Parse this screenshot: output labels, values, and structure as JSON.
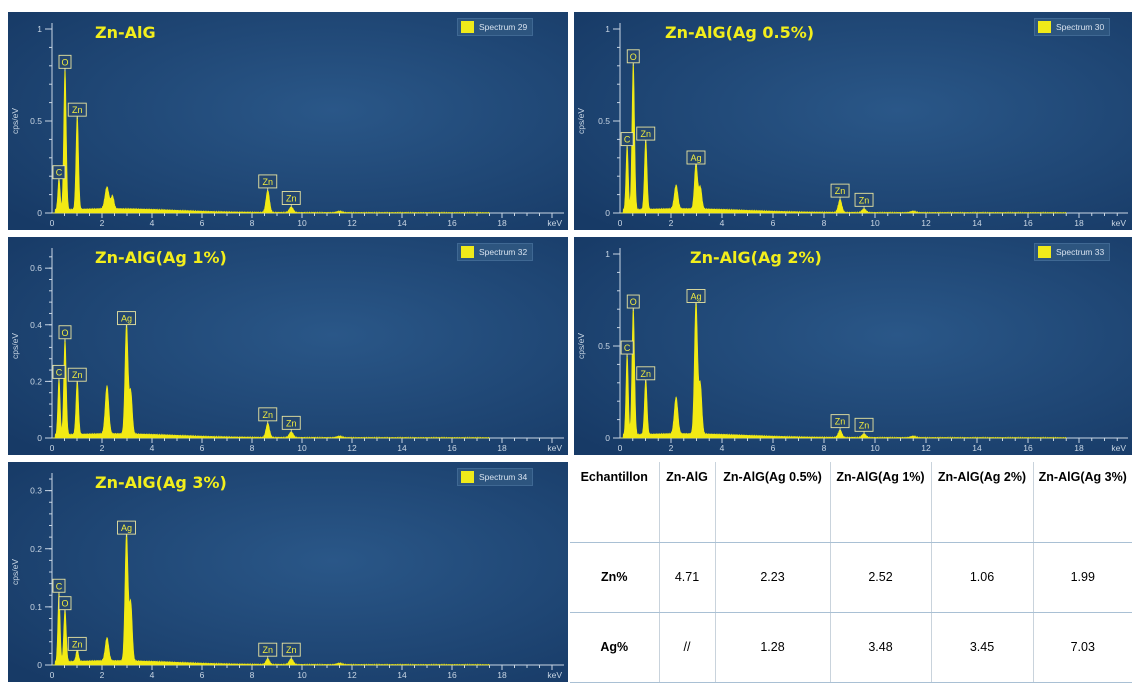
{
  "chart_data": [
    {
      "type": "line",
      "title": "Zn-AlG",
      "legend": "Spectrum 29",
      "ylabel": "cps/eV",
      "xlabel": "keV",
      "xlim": [
        0,
        20
      ],
      "ylim": [
        0,
        1.0
      ],
      "x_ticks": [
        "0",
        "2",
        "4",
        "6",
        "8",
        "10",
        "12",
        "14",
        "16",
        "18"
      ],
      "y_ticks": [
        {
          "v": 0,
          "t": "0"
        },
        {
          "v": 0.5,
          "t": "0.5"
        },
        {
          "v": 1,
          "t": "1"
        }
      ],
      "peaks": [
        {
          "label": "C",
          "x": 0.28,
          "y": 0.17,
          "w": 0.045
        },
        {
          "label": "O",
          "x": 0.52,
          "y": 0.77,
          "w": 0.05
        },
        {
          "label": "Zn",
          "x": 1.01,
          "y": 0.51,
          "w": 0.05
        },
        {
          "label": "",
          "x": 2.2,
          "y": 0.12,
          "w": 0.08
        },
        {
          "label": "",
          "x": 2.42,
          "y": 0.07,
          "w": 0.06
        },
        {
          "label": "Zn",
          "x": 8.63,
          "y": 0.12,
          "w": 0.07
        },
        {
          "label": "Zn",
          "x": 9.57,
          "y": 0.03,
          "w": 0.08
        }
      ]
    },
    {
      "type": "line",
      "title": "Zn-AlG(Ag 0.5%)",
      "legend": "Spectrum 30",
      "ylabel": "cps/eV",
      "xlabel": "keV",
      "xlim": [
        0,
        20
      ],
      "ylim": [
        0,
        1.0
      ],
      "x_ticks": [
        "0",
        "2",
        "4",
        "6",
        "8",
        "10",
        "12",
        "14",
        "16",
        "18"
      ],
      "y_ticks": [
        {
          "v": 0,
          "t": "0"
        },
        {
          "v": 0.5,
          "t": "0.5"
        },
        {
          "v": 1,
          "t": "1"
        }
      ],
      "peaks": [
        {
          "label": "C",
          "x": 0.28,
          "y": 0.35,
          "w": 0.045
        },
        {
          "label": "O",
          "x": 0.52,
          "y": 0.8,
          "w": 0.05
        },
        {
          "label": "Zn",
          "x": 1.01,
          "y": 0.38,
          "w": 0.05
        },
        {
          "label": "",
          "x": 2.2,
          "y": 0.13,
          "w": 0.07
        },
        {
          "label": "Ag",
          "x": 2.98,
          "y": 0.25,
          "w": 0.06
        },
        {
          "label": "",
          "x": 3.15,
          "y": 0.12,
          "w": 0.06
        },
        {
          "label": "Zn",
          "x": 8.63,
          "y": 0.07,
          "w": 0.07
        },
        {
          "label": "Zn",
          "x": 9.57,
          "y": 0.02,
          "w": 0.08
        }
      ]
    },
    {
      "type": "line",
      "title": "Zn-AlG(Ag 1%)",
      "legend": "Spectrum 32",
      "ylabel": "cps/eV",
      "xlabel": "keV",
      "xlim": [
        0,
        20
      ],
      "ylim": [
        0,
        0.65
      ],
      "x_ticks": [
        "0",
        "2",
        "4",
        "6",
        "8",
        "10",
        "12",
        "14",
        "16",
        "18"
      ],
      "y_ticks": [
        {
          "v": 0,
          "t": "0"
        },
        {
          "v": 0.2,
          "t": "0.2"
        },
        {
          "v": 0.4,
          "t": "0.4"
        },
        {
          "v": 0.6,
          "t": "0.6"
        }
      ],
      "peaks": [
        {
          "label": "C",
          "x": 0.28,
          "y": 0.2,
          "w": 0.045
        },
        {
          "label": "O",
          "x": 0.52,
          "y": 0.34,
          "w": 0.05
        },
        {
          "label": "Zn",
          "x": 1.01,
          "y": 0.19,
          "w": 0.05
        },
        {
          "label": "",
          "x": 2.2,
          "y": 0.17,
          "w": 0.07
        },
        {
          "label": "Ag",
          "x": 2.98,
          "y": 0.39,
          "w": 0.06
        },
        {
          "label": "",
          "x": 3.15,
          "y": 0.15,
          "w": 0.06
        },
        {
          "label": "Zn",
          "x": 8.63,
          "y": 0.05,
          "w": 0.07
        },
        {
          "label": "Zn",
          "x": 9.57,
          "y": 0.02,
          "w": 0.08
        }
      ]
    },
    {
      "type": "line",
      "title": "Zn-AlG(Ag 2%)",
      "legend": "Spectrum 33",
      "ylabel": "cps/eV",
      "xlabel": "keV",
      "xlim": [
        0,
        20
      ],
      "ylim": [
        0,
        1.0
      ],
      "x_ticks": [
        "0",
        "2",
        "4",
        "6",
        "8",
        "10",
        "12",
        "14",
        "16",
        "18"
      ],
      "y_ticks": [
        {
          "v": 0,
          "t": "0"
        },
        {
          "v": 0.5,
          "t": "0.5"
        },
        {
          "v": 1,
          "t": "1"
        }
      ],
      "peaks": [
        {
          "label": "C",
          "x": 0.28,
          "y": 0.44,
          "w": 0.045
        },
        {
          "label": "O",
          "x": 0.52,
          "y": 0.69,
          "w": 0.05
        },
        {
          "label": "Zn",
          "x": 1.01,
          "y": 0.3,
          "w": 0.05
        },
        {
          "label": "",
          "x": 2.2,
          "y": 0.2,
          "w": 0.07
        },
        {
          "label": "Ag",
          "x": 2.98,
          "y": 0.72,
          "w": 0.06
        },
        {
          "label": "",
          "x": 3.15,
          "y": 0.27,
          "w": 0.06
        },
        {
          "label": "Zn",
          "x": 8.63,
          "y": 0.04,
          "w": 0.07
        },
        {
          "label": "Zn",
          "x": 9.57,
          "y": 0.02,
          "w": 0.08
        }
      ]
    },
    {
      "type": "line",
      "title": "Zn-AlG(Ag 3%)",
      "legend": "Spectrum 34",
      "ylabel": "cps/eV",
      "xlabel": "keV",
      "xlim": [
        0,
        20
      ],
      "ylim": [
        0,
        0.32
      ],
      "x_ticks": [
        "0",
        "2",
        "4",
        "6",
        "8",
        "10",
        "12",
        "14",
        "16",
        "18"
      ],
      "y_ticks": [
        {
          "v": 0,
          "t": "0"
        },
        {
          "v": 0.1,
          "t": "0.1"
        },
        {
          "v": 0.2,
          "t": "0.2"
        },
        {
          "v": 0.3,
          "t": "0.3"
        }
      ],
      "peaks": [
        {
          "label": "C",
          "x": 0.28,
          "y": 0.12,
          "w": 0.045
        },
        {
          "label": "O",
          "x": 0.52,
          "y": 0.09,
          "w": 0.05
        },
        {
          "label": "Zn",
          "x": 1.01,
          "y": 0.02,
          "w": 0.05
        },
        {
          "label": "",
          "x": 2.2,
          "y": 0.04,
          "w": 0.07
        },
        {
          "label": "Ag",
          "x": 2.98,
          "y": 0.22,
          "w": 0.06
        },
        {
          "label": "",
          "x": 3.15,
          "y": 0.1,
          "w": 0.06
        },
        {
          "label": "Zn",
          "x": 8.63,
          "y": 0.01,
          "w": 0.07
        },
        {
          "label": "Zn",
          "x": 9.57,
          "y": 0.01,
          "w": 0.08
        }
      ]
    },
    {
      "type": "table",
      "headers": [
        "Echantillon",
        "Zn-AlG",
        "Zn-AlG(Ag 0.5%)",
        "Zn-AlG(Ag 1%)",
        "Zn-AlG(Ag 2%)",
        "Zn-AlG(Ag 3%)"
      ],
      "rows": [
        {
          "label": "Zn%",
          "values": [
            "4.71",
            "2.23",
            "2.52",
            "1.06",
            "1.99"
          ]
        },
        {
          "label": "Ag%",
          "values": [
            "//",
            "1.28",
            "3.48",
            "3.45",
            "7.03"
          ]
        }
      ]
    }
  ],
  "colors": {
    "panel_bg": "#1b3f6c",
    "spectrum": "#f2ea14",
    "title": "#f2ee1c",
    "axis": "#c9d6e4",
    "label_box_border": "#e8e4a0"
  }
}
